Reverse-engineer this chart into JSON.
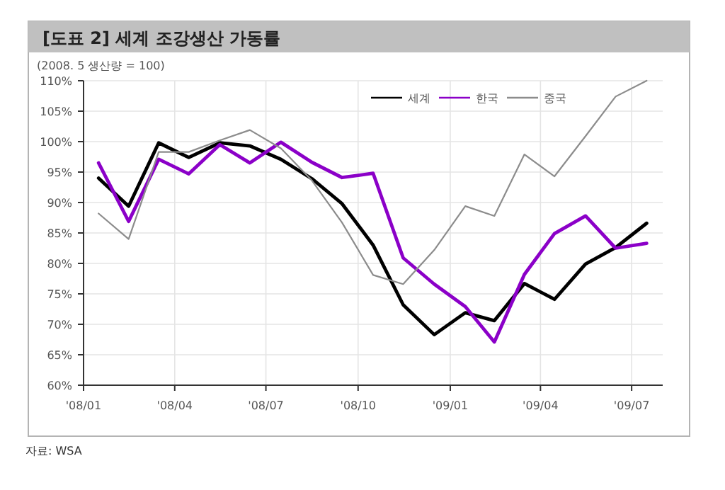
{
  "chart_data": {
    "type": "line",
    "title": "[도표 2] 세계 조강생산 가동률",
    "subtitle": "(2008. 5 생산량 = 100)",
    "x": [
      "2008-01-16",
      "2008-02-15",
      "2008-03-16",
      "2008-04-15",
      "2008-05-16",
      "2008-06-15",
      "2008-07-16",
      "2008-08-16",
      "2008-09-15",
      "2008-10-16",
      "2008-11-15",
      "2008-12-16",
      "2009-01-16",
      "2009-02-14",
      "2009-03-16",
      "2009-04-15",
      "2009-05-16",
      "2009-06-15",
      "2009-07-16"
    ],
    "series": [
      {
        "name": "세계",
        "color": "#000000",
        "values": [
          94.0,
          89.4,
          99.8,
          97.4,
          99.8,
          99.3,
          97.1,
          93.9,
          89.8,
          83.0,
          73.2,
          68.3,
          71.9,
          70.6,
          76.7,
          74.1,
          79.9,
          82.6,
          86.6
        ]
      },
      {
        "name": "한국",
        "color": "#8b00c8",
        "values": [
          96.5,
          86.9,
          97.1,
          94.7,
          99.5,
          96.5,
          99.9,
          96.6,
          94.1,
          94.8,
          80.9,
          76.6,
          72.9,
          67.1,
          78.2,
          84.9,
          87.8,
          82.5,
          83.3
        ]
      },
      {
        "name": "중국",
        "color": "#8c8c8c",
        "values": [
          88.2,
          84.0,
          98.3,
          98.3,
          100.2,
          101.9,
          98.9,
          93.6,
          86.7,
          78.1,
          76.6,
          82.2,
          89.4,
          87.8,
          97.9,
          94.3,
          100.9,
          107.4,
          110.0
        ]
      }
    ],
    "xlim": [
      "2008-01-01",
      "2009-08-01"
    ],
    "xticks": [
      {
        "value": "2008-01-01",
        "label": "'08/01"
      },
      {
        "value": "2008-04-01",
        "label": "'08/04"
      },
      {
        "value": "2008-07-01",
        "label": "'08/07"
      },
      {
        "value": "2008-10-01",
        "label": "'08/10"
      },
      {
        "value": "2009-01-01",
        "label": "'09/01"
      },
      {
        "value": "2009-04-01",
        "label": "'09/04"
      },
      {
        "value": "2009-07-01",
        "label": "'09/07"
      }
    ],
    "ylim": [
      60,
      110
    ],
    "yticks": [
      {
        "value": 60,
        "label": "60%"
      },
      {
        "value": 65,
        "label": "65%"
      },
      {
        "value": 70,
        "label": "70%"
      },
      {
        "value": 75,
        "label": "75%"
      },
      {
        "value": 80,
        "label": "80%"
      },
      {
        "value": 85,
        "label": "85%"
      },
      {
        "value": 90,
        "label": "90%"
      },
      {
        "value": 95,
        "label": "95%"
      },
      {
        "value": 100,
        "label": "100%"
      },
      {
        "value": 105,
        "label": "105%"
      },
      {
        "value": 110,
        "label": "110%"
      }
    ],
    "grid": true,
    "legend": "top right",
    "marker": "none",
    "line_style": "solid",
    "annotations": [
      "자료: WSA"
    ]
  }
}
